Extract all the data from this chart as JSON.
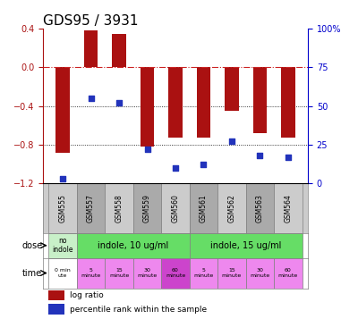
{
  "title": "GDS95 / 3931",
  "samples": [
    "GSM555",
    "GSM557",
    "GSM558",
    "GSM559",
    "GSM560",
    "GSM561",
    "GSM562",
    "GSM563",
    "GSM564"
  ],
  "log_ratio": [
    -0.88,
    0.38,
    0.35,
    -0.82,
    -0.73,
    -0.73,
    -0.45,
    -0.68,
    -0.73
  ],
  "percentile_rank": [
    3,
    55,
    52,
    22,
    10,
    12,
    27,
    18,
    17
  ],
  "ylim_left": [
    -1.2,
    0.4
  ],
  "ylim_right": [
    0,
    100
  ],
  "yticks_left": [
    -1.2,
    -0.8,
    -0.4,
    0.0,
    0.4
  ],
  "yticks_right": [
    0,
    25,
    50,
    75,
    100
  ],
  "bar_color": "#AA1111",
  "dot_color": "#2233BB",
  "hline_color": "#CC2222",
  "grid_color": "#000000",
  "dose_no_indole_color": "#C8F0C8",
  "dose_indole_color": "#66DD66",
  "time_light_color": "#EE88EE",
  "time_dark_color": "#CC44CC",
  "time_0_color": "#FFFFFF",
  "sample_bg_even": "#CCCCCC",
  "sample_bg_odd": "#AAAAAA",
  "dose_label": "dose",
  "time_label": "time",
  "legend_log_ratio": "log ratio",
  "legend_percentile": "percentile rank within the sample",
  "right_axis_color": "#0000CC",
  "left_axis_color": "#AA1111",
  "title_fontsize": 11,
  "tick_fontsize": 7,
  "bar_width": 0.5,
  "time_labels": [
    "0 min\nute",
    "5\nminute",
    "15\nminute",
    "30\nminute",
    "60\nminute",
    "5\nminute",
    "15\nminute",
    "30\nminute",
    "60\nminute"
  ],
  "time_colors_key": [
    0,
    1,
    1,
    1,
    2,
    1,
    1,
    1,
    1
  ]
}
